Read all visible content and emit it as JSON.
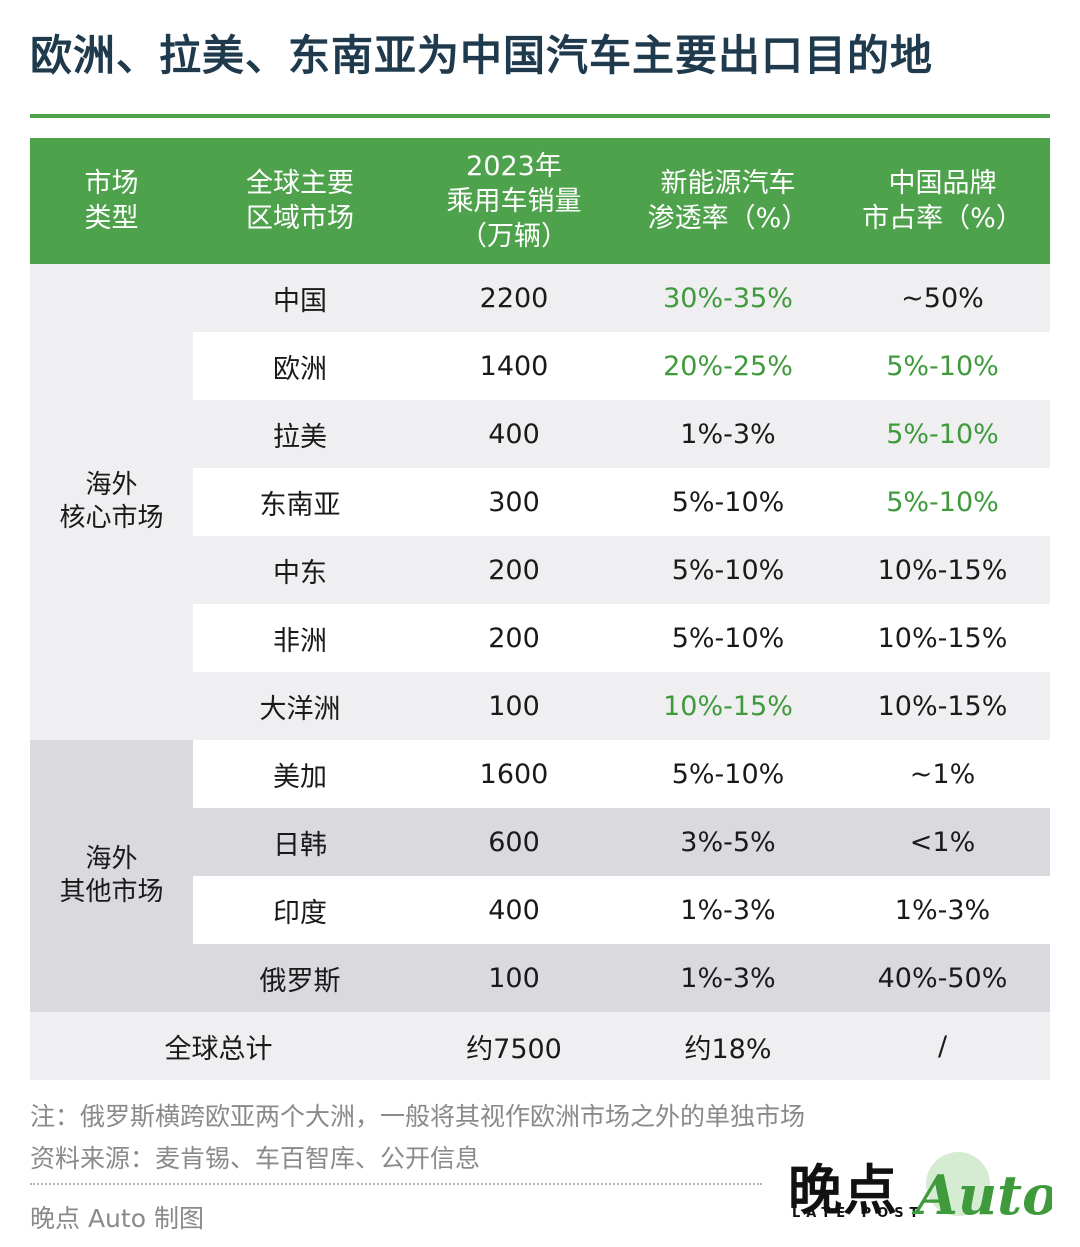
{
  "title": "欧洲、拉美、东南亚为中国汽车主要出口目的地",
  "colors": {
    "accent": "#4ea24b",
    "highlight_text": "#3f9a3c",
    "title": "#1f3a4d"
  },
  "chart_data": {
    "type": "table",
    "headers": [
      "市场\n类型",
      "全球主要\n区域市场",
      "2023年\n乘用车销量\n（万辆）",
      "新能源汽车\n渗透率（%）",
      "中国品牌\n市占率（%）"
    ],
    "groups": [
      {
        "name": "海外\n核心市场",
        "rows": [
          {
            "region": "中国",
            "sales": "2200",
            "nev": "30%-35%",
            "nev_hl": true,
            "share": "~50%",
            "share_hl": false
          },
          {
            "region": "欧洲",
            "sales": "1400",
            "nev": "20%-25%",
            "nev_hl": true,
            "share": "5%-10%",
            "share_hl": true
          },
          {
            "region": "拉美",
            "sales": "400",
            "nev": "1%-3%",
            "nev_hl": false,
            "share": "5%-10%",
            "share_hl": true
          },
          {
            "region": "东南亚",
            "sales": "300",
            "nev": "5%-10%",
            "nev_hl": false,
            "share": "5%-10%",
            "share_hl": true
          },
          {
            "region": "中东",
            "sales": "200",
            "nev": "5%-10%",
            "nev_hl": false,
            "share": "10%-15%",
            "share_hl": false
          },
          {
            "region": "非洲",
            "sales": "200",
            "nev": "5%-10%",
            "nev_hl": false,
            "share": "10%-15%",
            "share_hl": false
          },
          {
            "region": "大洋洲",
            "sales": "100",
            "nev": "10%-15%",
            "nev_hl": true,
            "share": "10%-15%",
            "share_hl": false
          }
        ]
      },
      {
        "name": "海外\n其他市场",
        "rows": [
          {
            "region": "美加",
            "sales": "1600",
            "nev": "5%-10%",
            "nev_hl": false,
            "share": "~1%",
            "share_hl": false
          },
          {
            "region": "日韩",
            "sales": "600",
            "nev": "3%-5%",
            "nev_hl": false,
            "share": "<1%",
            "share_hl": false
          },
          {
            "region": "印度",
            "sales": "400",
            "nev": "1%-3%",
            "nev_hl": false,
            "share": "1%-3%",
            "share_hl": false
          },
          {
            "region": "俄罗斯",
            "sales": "100",
            "nev": "1%-3%",
            "nev_hl": false,
            "share": "40%-50%",
            "share_hl": false
          }
        ]
      }
    ],
    "total": {
      "label": "全球总计",
      "sales": "约7500",
      "nev": "约18%",
      "share": "/"
    }
  },
  "footer": {
    "note": "注：俄罗斯横跨欧亚两个大洲，一般将其视作欧洲市场之外的单独市场",
    "source": "资料来源：麦肯锡、车百智库、公开信息",
    "credit": "晚点 Auto 制图"
  },
  "logo": {
    "cn": "晚点",
    "en": "LATE POST",
    "auto": "Auto"
  }
}
